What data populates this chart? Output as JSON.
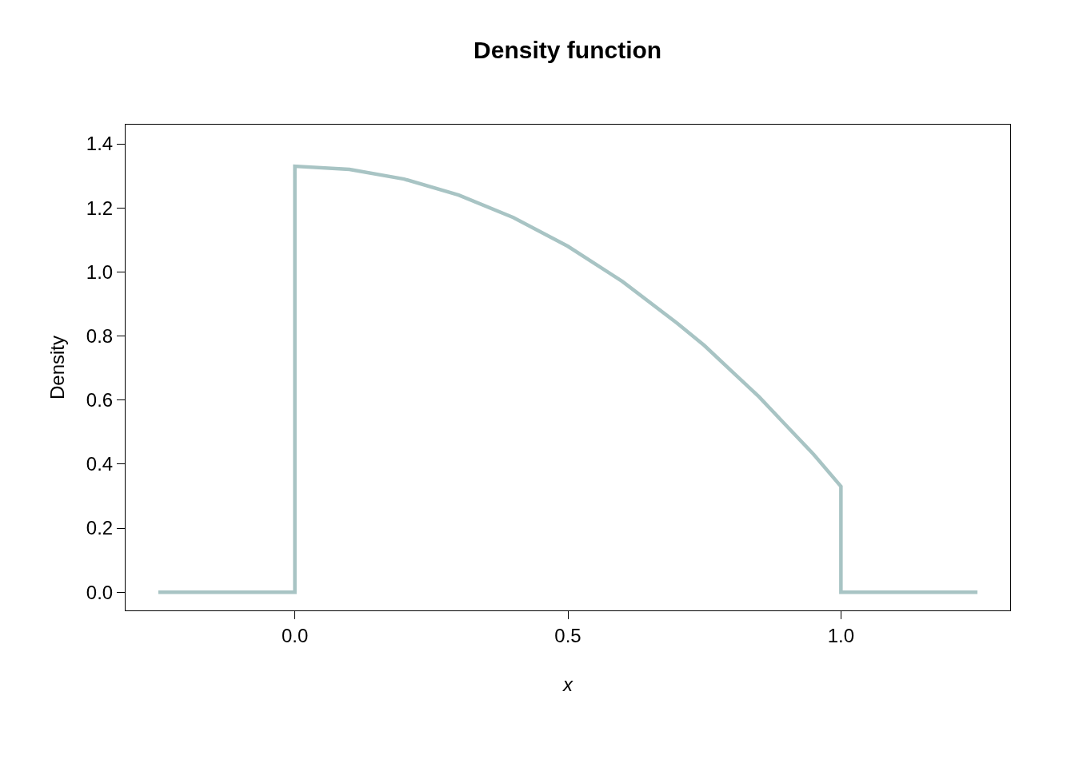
{
  "chart_data": {
    "type": "line",
    "title": "Density function",
    "xlabel": "x",
    "ylabel": "Density",
    "x": [
      -0.25,
      0,
      0,
      0.1,
      0.2,
      0.3,
      0.4,
      0.5,
      0.6,
      0.7,
      0.75,
      0.8,
      0.85,
      0.9,
      0.95,
      1.0,
      1.0,
      1.25
    ],
    "series": [
      {
        "color": "#a8c4c4",
        "values": [
          0,
          0,
          1.33,
          1.32,
          1.29,
          1.24,
          1.17,
          1.08,
          0.97,
          0.84,
          0.77,
          0.69,
          0.61,
          0.52,
          0.43,
          0.33,
          0,
          0
        ]
      }
    ],
    "xlim": [
      -0.31,
      1.31
    ],
    "xticks": [
      {
        "value": 0,
        "label": "0.0"
      },
      0.5,
      {
        "value": 1,
        "label": "1.0"
      }
    ],
    "ylim": [
      -0.057,
      1.46
    ],
    "yticks": [
      {
        "value": 0,
        "label": "0.0"
      },
      0.2,
      0.4,
      0.6,
      0.8,
      {
        "value": 1,
        "label": "1.0"
      },
      1.2,
      1.4
    ],
    "marker": "none",
    "line_style": "solid"
  }
}
